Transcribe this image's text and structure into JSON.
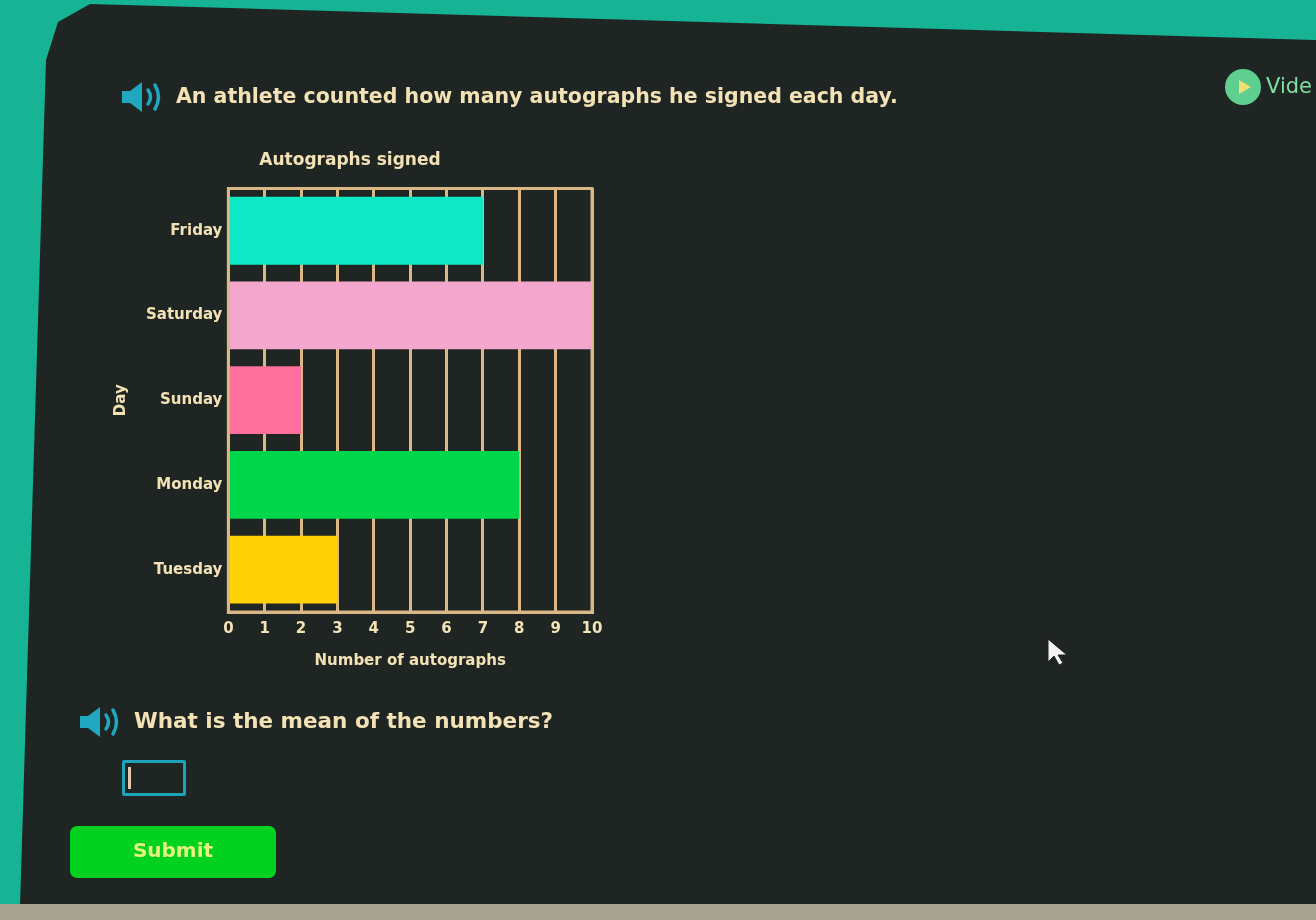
{
  "chart_data": {
    "type": "bar",
    "orientation": "horizontal",
    "title": "Autographs signed",
    "xlabel": "Number of autographs",
    "ylabel": "Day",
    "categories": [
      "Friday",
      "Saturday",
      "Sunday",
      "Monday",
      "Tuesday"
    ],
    "values": [
      7,
      10,
      2,
      8,
      3
    ],
    "colors": [
      "#0ee8c4",
      "#f4a7cd",
      "#fe6f9d",
      "#00d64c",
      "#fed205"
    ],
    "xlim": [
      0,
      10
    ],
    "xticks": [
      0,
      1,
      2,
      3,
      4,
      5,
      6,
      7,
      8,
      9,
      10
    ],
    "grid": "x",
    "legend": false,
    "annotations": [
      "An athlete counted how many autographs he signed each day.",
      "Vide",
      "What is the mean of the numbers?",
      "Submit"
    ]
  }
}
